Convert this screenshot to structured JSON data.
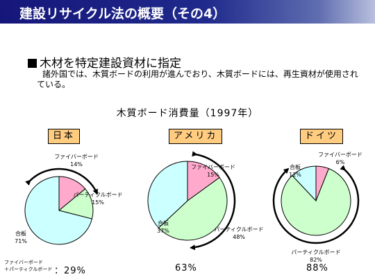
{
  "title": "建設リサイクル法の概要（その4）",
  "heading": "木材を特定建設資材に指定",
  "description": "諸外国では、木質ボードの利用が進んでおり、木質ボードには、再生資材が使用されている。",
  "chart_title": "木質ボード消費量（1997年）",
  "colors": {
    "fiberboard": "#ffaacc",
    "particleboard": "#ccffcc",
    "plywood": "#ccffff",
    "country_label_bg": "#ffcc80",
    "title_bar": "#1a1f80"
  },
  "chart_data": [
    {
      "type": "pie",
      "country": "日本",
      "slices": [
        {
          "label": "ファイバーボード",
          "value": 14,
          "display": "14%"
        },
        {
          "label": "パーティクルボード",
          "value": 15,
          "display": "15%"
        },
        {
          "label": "合板",
          "value": 71,
          "display": "71%"
        }
      ],
      "footer": "：29%"
    },
    {
      "type": "pie",
      "country": "アメリカ",
      "slices": [
        {
          "label": "ファイバーボード",
          "value": 15,
          "display": "15%"
        },
        {
          "label": "パーティクルボード",
          "value": 48,
          "display": "48%"
        },
        {
          "label": "合板",
          "value": 37,
          "display": "37%"
        }
      ],
      "footer": "63%"
    },
    {
      "type": "pie",
      "country": "ドイツ",
      "slices": [
        {
          "label": "ファイバーボード",
          "value": 6,
          "display": "6%"
        },
        {
          "label": "パーティクルボード",
          "value": 82,
          "display": "82%"
        },
        {
          "label": "合板",
          "value": 12,
          "display": "12%"
        }
      ],
      "footer": "88%"
    }
  ],
  "footer_note": {
    "line1": "ファイバーボード",
    "line2": "＋パーティクルボード"
  }
}
